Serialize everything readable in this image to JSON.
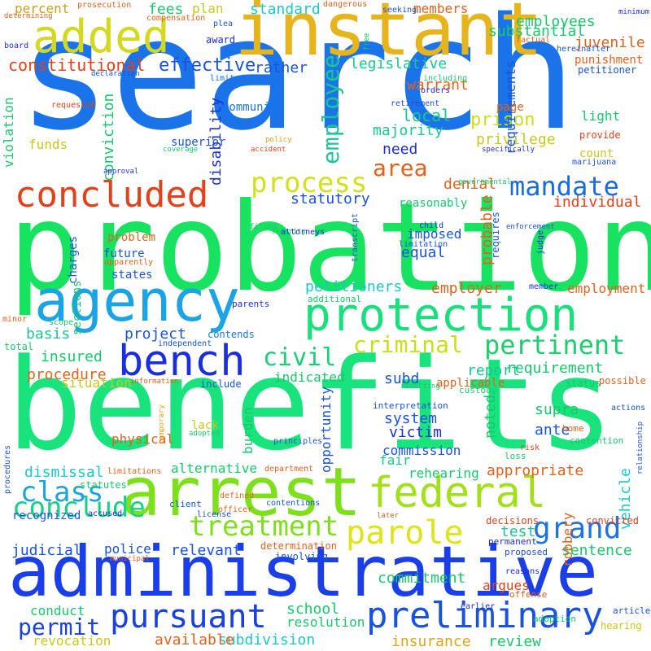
{
  "words": [
    {
      "text": "search",
      "color": "#1a73e8"
    },
    {
      "text": "probation",
      "color": "#17e360"
    },
    {
      "text": "benefits",
      "color": "#18e37c"
    },
    {
      "text": "administrative",
      "color": "#1a3fe8"
    },
    {
      "text": "instant",
      "color": "#e6b41c"
    },
    {
      "text": "arrest",
      "color": "#7ee01c"
    },
    {
      "text": "added",
      "color": "#d2d91f"
    },
    {
      "text": "agency",
      "color": "#1ba3e3"
    },
    {
      "text": "protection",
      "color": "#19df7c"
    },
    {
      "text": "federal",
      "color": "#a3e01c"
    },
    {
      "text": "bench",
      "color": "#1a2ee0"
    },
    {
      "text": "concluded",
      "color": "#e0421c"
    },
    {
      "text": "preliminary",
      "color": "#1a52e0"
    },
    {
      "text": "parole",
      "color": "#dfe31c"
    },
    {
      "text": "pursuant",
      "color": "#1a40e0"
    },
    {
      "text": "treatment",
      "color": "#7ee01c"
    },
    {
      "text": "conclude",
      "color": "#19d08a"
    },
    {
      "text": "grand",
      "color": "#1a73e8"
    },
    {
      "text": "class",
      "color": "#1ba3e3"
    },
    {
      "text": "process",
      "color": "#d3e01c"
    },
    {
      "text": "mandate",
      "color": "#1a6ae0"
    },
    {
      "text": "pertinent",
      "color": "#19d06c"
    },
    {
      "text": "criminal",
      "color": "#c8e01c"
    },
    {
      "text": "civil",
      "color": "#19d07a"
    },
    {
      "text": "employee",
      "color": "#19c890"
    },
    {
      "text": "area",
      "color": "#e0621c"
    },
    {
      "text": "permit",
      "color": "#1a40e0"
    },
    {
      "text": "effective",
      "color": "#1a52e0"
    },
    {
      "text": "constitutional",
      "color": "#e0421c"
    },
    {
      "text": "standard",
      "color": "#1ac8c8"
    },
    {
      "text": "substantial",
      "color": "#19c86c"
    },
    {
      "text": "employees",
      "color": "#19c86c"
    },
    {
      "text": "juvenile",
      "color": "#e0621c"
    },
    {
      "text": "legislative",
      "color": "#19c890"
    },
    {
      "text": "warrant",
      "color": "#e0621c"
    },
    {
      "text": "local",
      "color": "#19c890"
    },
    {
      "text": "prison",
      "color": "#c8e01c"
    },
    {
      "text": "majority",
      "color": "#19c890"
    },
    {
      "text": "privilege",
      "color": "#c8c81c"
    },
    {
      "text": "need",
      "color": "#1a2ee0"
    },
    {
      "text": "statutory",
      "color": "#1a52e0"
    },
    {
      "text": "denial",
      "color": "#e0621c"
    },
    {
      "text": "individual",
      "color": "#e0421c"
    },
    {
      "text": "imposed",
      "color": "#1a52e0"
    },
    {
      "text": "equal",
      "color": "#1a52e0"
    },
    {
      "text": "probable",
      "color": "#e0621c"
    },
    {
      "text": "petitioners",
      "color": "#1ac8c8"
    },
    {
      "text": "employer",
      "color": "#e0621c"
    },
    {
      "text": "employment",
      "color": "#e0621c"
    },
    {
      "text": "basis",
      "color": "#19c890"
    },
    {
      "text": "project",
      "color": "#1a52e0"
    },
    {
      "text": "insured",
      "color": "#19c86c"
    },
    {
      "text": "indicated",
      "color": "#19c86c"
    },
    {
      "text": "requirement",
      "color": "#19c86c"
    },
    {
      "text": "procedure",
      "color": "#e0621c"
    },
    {
      "text": "report",
      "color": "#19c890"
    },
    {
      "text": "subd",
      "color": "#1a52e0"
    },
    {
      "text": "situation",
      "color": "#c8c81c"
    },
    {
      "text": "supra",
      "color": "#19c86c"
    },
    {
      "text": "system",
      "color": "#1a52e0"
    },
    {
      "text": "victim",
      "color": "#1a2ee0"
    },
    {
      "text": "commission",
      "color": "#1a52e0"
    },
    {
      "text": "ante",
      "color": "#1a52e0"
    },
    {
      "text": "fair",
      "color": "#19c890"
    },
    {
      "text": "dismissal",
      "color": "#19c8c8"
    },
    {
      "text": "alternative",
      "color": "#19c86c"
    },
    {
      "text": "appropriate",
      "color": "#e0621c"
    },
    {
      "text": "rehearing",
      "color": "#19c86c"
    },
    {
      "text": "police",
      "color": "#1a52e0"
    },
    {
      "text": "relevant",
      "color": "#1a52e0"
    },
    {
      "text": "test",
      "color": "#19c890"
    },
    {
      "text": "judicial",
      "color": "#1a52e0"
    },
    {
      "text": "sentence",
      "color": "#19c86c"
    },
    {
      "text": "commitment",
      "color": "#19c86c"
    },
    {
      "text": "school",
      "color": "#19c86c"
    },
    {
      "text": "resolution",
      "color": "#19c86c"
    },
    {
      "text": "subdivision",
      "color": "#1ac8c8"
    },
    {
      "text": "available",
      "color": "#e0621c"
    },
    {
      "text": "insurance",
      "color": "#e0a21c"
    },
    {
      "text": "review",
      "color": "#19c86c"
    },
    {
      "text": "revocation",
      "color": "#c8c81c"
    },
    {
      "text": "conduct",
      "color": "#19c86c"
    },
    {
      "text": "fees",
      "color": "#19c86c"
    },
    {
      "text": "percent",
      "color": "#c8a21c"
    },
    {
      "text": "plan",
      "color": "#c8c81c"
    },
    {
      "text": "members",
      "color": "#e0621c"
    },
    {
      "text": "rather",
      "color": "#1a52e0"
    },
    {
      "text": "community",
      "color": "#1a73e8"
    },
    {
      "text": "superior",
      "color": "#1a52e0"
    },
    {
      "text": "conviction",
      "color": "#19c86c"
    },
    {
      "text": "disability",
      "color": "#1a2ee0"
    },
    {
      "text": "funds",
      "color": "#c8c81c"
    },
    {
      "text": "violation",
      "color": "#19c86c"
    },
    {
      "text": "future",
      "color": "#1a52e0"
    },
    {
      "text": "states",
      "color": "#1a52e0"
    },
    {
      "text": "charges",
      "color": "#1a52e0"
    },
    {
      "text": "sections",
      "color": "#19c86c"
    },
    {
      "text": "problem",
      "color": "#e0621c"
    },
    {
      "text": "physical",
      "color": "#e0621c"
    },
    {
      "text": "lack",
      "color": "#c8c81c"
    },
    {
      "text": "burden",
      "color": "#19c86c"
    },
    {
      "text": "opportunity",
      "color": "#1a52e0"
    },
    {
      "text": "noted",
      "color": "#19c86c"
    },
    {
      "text": "robbery",
      "color": "#e0621c"
    },
    {
      "text": "vehicle",
      "color": "#1ac8c8"
    },
    {
      "text": "argues",
      "color": "#e0421c"
    },
    {
      "text": "requirements",
      "color": "#1a52e0"
    },
    {
      "text": "light",
      "color": "#19c86c"
    },
    {
      "text": "count",
      "color": "#c8c81c"
    },
    {
      "text": "page",
      "color": "#e0621c"
    },
    {
      "text": "punishment",
      "color": "#e0621c"
    },
    {
      "text": "petitioner",
      "color": "#1a52e0"
    },
    {
      "text": "provide",
      "color": "#e0421c"
    },
    {
      "text": "marijuana",
      "color": "#1a52e0"
    },
    {
      "text": "award",
      "color": "#1a2ee0"
    },
    {
      "text": "plea",
      "color": "#1a52e0"
    },
    {
      "text": "compensation",
      "color": "#e0621c"
    },
    {
      "text": "prosecution",
      "color": "#e0621c"
    },
    {
      "text": "dangerous",
      "color": "#e0621c"
    },
    {
      "text": "seeking",
      "color": "#1a52e0"
    },
    {
      "text": "minimum",
      "color": "#1a2ee0"
    },
    {
      "text": "determining",
      "color": "#e0621c"
    },
    {
      "text": "board",
      "color": "#1a2ee0"
    },
    {
      "text": "declaration",
      "color": "#1a52e0"
    },
    {
      "text": "limited",
      "color": "#1a73e8"
    },
    {
      "text": "including",
      "color": "#19c86c"
    },
    {
      "text": "factual",
      "color": "#e0621c"
    },
    {
      "text": "hereinafter",
      "color": "#1a52e0"
    },
    {
      "text": "orders",
      "color": "#1a2ee0"
    },
    {
      "text": "retirement",
      "color": "#1a52e0"
    },
    {
      "text": "requested",
      "color": "#e0421c"
    },
    {
      "text": "policy",
      "color": "#e0a21c"
    },
    {
      "text": "accident",
      "color": "#e0421c"
    },
    {
      "text": "coverage",
      "color": "#19c86c"
    },
    {
      "text": "approval",
      "color": "#1a2ee0"
    },
    {
      "text": "specifically",
      "color": "#1a2ee0"
    },
    {
      "text": "governmental",
      "color": "#19c86c"
    },
    {
      "text": "filing",
      "color": "#19c86c"
    },
    {
      "text": "security",
      "color": "#19c86c"
    },
    {
      "text": "enforcement",
      "color": "#1a52e0"
    },
    {
      "text": "reasonably",
      "color": "#19c86c"
    },
    {
      "text": "transcript",
      "color": "#1a52e0"
    },
    {
      "text": "requires",
      "color": "#1a52e0"
    },
    {
      "text": "child",
      "color": "#1a2ee0"
    },
    {
      "text": "limitation",
      "color": "#1a52e0"
    },
    {
      "text": "judge",
      "color": "#1a2ee0"
    },
    {
      "text": "attorneys",
      "color": "#1a2ee0"
    },
    {
      "text": "apparently",
      "color": "#e0621c"
    },
    {
      "text": "member",
      "color": "#1a2ee0"
    },
    {
      "text": "additional",
      "color": "#19c86c"
    },
    {
      "text": "parents",
      "color": "#1a2ee0"
    },
    {
      "text": "minor",
      "color": "#e0621c"
    },
    {
      "text": "scope",
      "color": "#19c86c"
    },
    {
      "text": "total",
      "color": "#19c86c"
    },
    {
      "text": "independent",
      "color": "#1a52e0"
    },
    {
      "text": "contends",
      "color": "#1a73e8"
    },
    {
      "text": "include",
      "color": "#1a52e0"
    },
    {
      "text": "information",
      "color": "#e0621c"
    },
    {
      "text": "temporary",
      "color": "#e0a21c"
    },
    {
      "text": "resulting",
      "color": "#19c86c"
    },
    {
      "text": "custody",
      "color": "#19c86c"
    },
    {
      "text": "status",
      "color": "#19c86c"
    },
    {
      "text": "possible",
      "color": "#e0621c"
    },
    {
      "text": "actions",
      "color": "#1a52e0"
    },
    {
      "text": "applicable",
      "color": "#e0621c"
    },
    {
      "text": "interpretation",
      "color": "#1a52e0"
    },
    {
      "text": "adopted",
      "color": "#19c86c"
    },
    {
      "text": "principles",
      "color": "#1a52e0"
    },
    {
      "text": "department",
      "color": "#e0621c"
    },
    {
      "text": "home",
      "color": "#e0621c"
    },
    {
      "text": "contention",
      "color": "#19c86c"
    },
    {
      "text": "relationship",
      "color": "#1a52e0"
    },
    {
      "text": "risk",
      "color": "#e0421c"
    },
    {
      "text": "loss",
      "color": "#19c86c"
    },
    {
      "text": "procedures",
      "color": "#1a52e0"
    },
    {
      "text": "limitations",
      "color": "#e0621c"
    },
    {
      "text": "statutes",
      "color": "#19c86c"
    },
    {
      "text": "client",
      "color": "#1a52e0"
    },
    {
      "text": "defined",
      "color": "#e0621c"
    },
    {
      "text": "contentions",
      "color": "#1a52e0"
    },
    {
      "text": "recognized",
      "color": "#1a52e0"
    },
    {
      "text": "accused",
      "color": "#1a2ee0"
    },
    {
      "text": "license",
      "color": "#1a52e0"
    },
    {
      "text": "officer",
      "color": "#e0621c"
    },
    {
      "text": "decisions",
      "color": "#e0421c"
    },
    {
      "text": "convicted",
      "color": "#e0421c"
    },
    {
      "text": "later",
      "color": "#e0621c"
    },
    {
      "text": "determination",
      "color": "#e0621c"
    },
    {
      "text": "municipal",
      "color": "#e0621c"
    },
    {
      "text": "involving",
      "color": "#1a52e0"
    },
    {
      "text": "permanent",
      "color": "#1a2ee0"
    },
    {
      "text": "proposed",
      "color": "#1a52e0"
    },
    {
      "text": "reasons",
      "color": "#1a2ee0"
    },
    {
      "text": "offense",
      "color": "#e0621c"
    },
    {
      "text": "adoption",
      "color": "#19c86c"
    },
    {
      "text": "article",
      "color": "#1a52e0"
    },
    {
      "text": "hearing",
      "color": "#c8c81c"
    },
    {
      "text": "earlier",
      "color": "#1a2ee0"
    },
    {
      "text": "free",
      "color": "#19c86c"
    }
  ]
}
